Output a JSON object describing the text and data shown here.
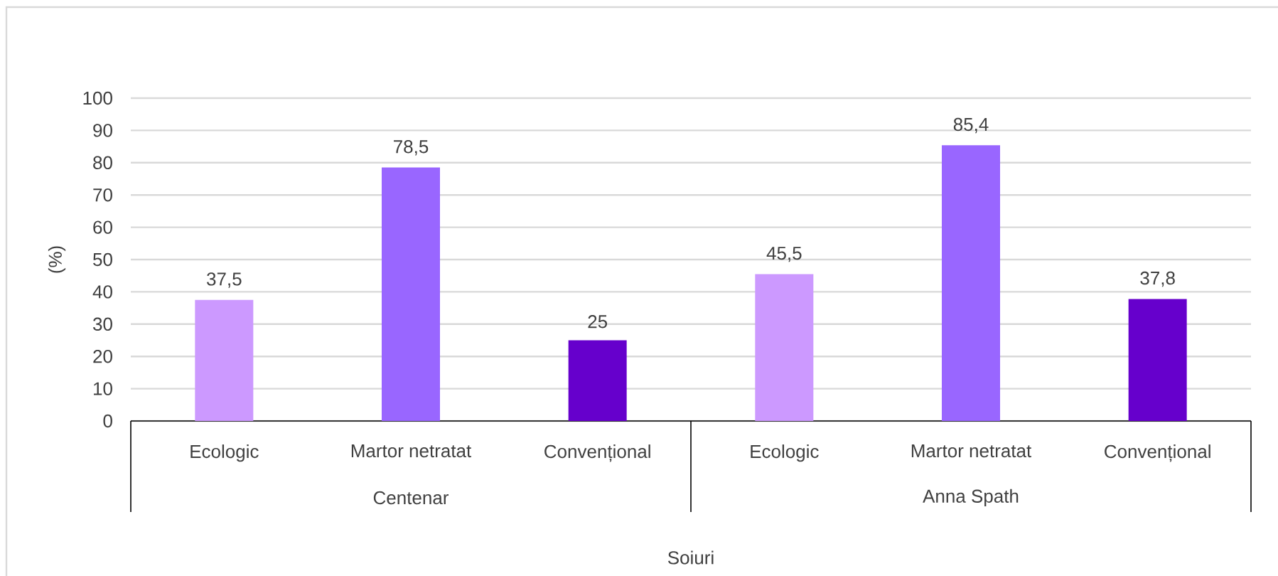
{
  "chart_data": {
    "type": "bar",
    "categories": [
      "Ecologic",
      "Martor netratat",
      "Convențional",
      "Ecologic",
      "Martor netratat",
      "Convențional"
    ],
    "values": [
      37.5,
      78.5,
      25,
      45.5,
      85.4,
      37.8
    ],
    "colors": [
      "#cc99ff",
      "#9966ff",
      "#6600cc",
      "#cc99ff",
      "#9966ff",
      "#6600cc"
    ],
    "value_labels": [
      "37,5",
      "78,5",
      "25",
      "45,5",
      "85,4",
      "37,8"
    ],
    "ylim": [
      0,
      100
    ],
    "yticks": [
      0,
      10,
      20,
      30,
      40,
      50,
      60,
      70,
      80,
      90,
      100
    ],
    "grid": "y",
    "ylabel": "(%)",
    "xlabel": "Soiuri",
    "annotations": [
      "Centenar",
      "Anna Spath"
    ]
  }
}
